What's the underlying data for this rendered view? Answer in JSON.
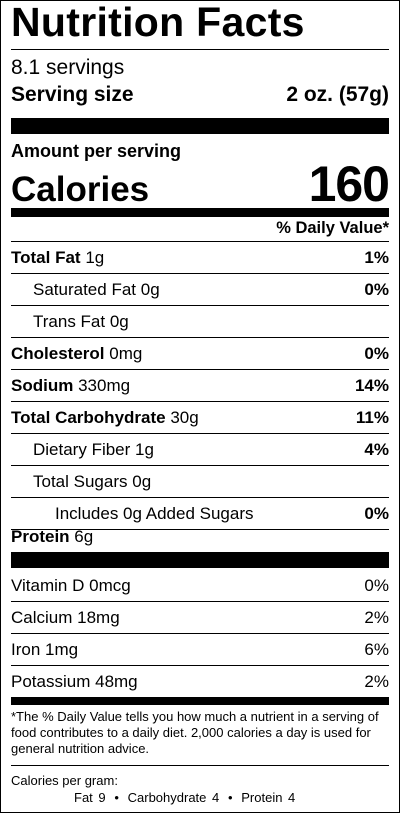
{
  "title": "Nutrition Facts",
  "servings": "8.1 servings",
  "serving_size": {
    "label": "Serving size",
    "value": "2 oz. (57g)"
  },
  "amount_per_serving": "Amount per serving",
  "calories": {
    "label": "Calories",
    "value": "160"
  },
  "daily_value_header": "% Daily Value*",
  "nutrients": [
    {
      "name": "Total Fat",
      "amount": "1g",
      "dv": "1%"
    },
    {
      "name": "Saturated Fat",
      "amount": "0g",
      "dv": "0%"
    },
    {
      "name": "Trans Fat",
      "amount": "0g",
      "dv": ""
    },
    {
      "name": "Cholesterol",
      "amount": "0mg",
      "dv": "0%"
    },
    {
      "name": "Sodium",
      "amount": "330mg",
      "dv": "14%"
    },
    {
      "name": "Total Carbohydrate",
      "amount": "30g",
      "dv": "11%"
    },
    {
      "name": "Dietary Fiber",
      "amount": "1g",
      "dv": "4%"
    },
    {
      "name": "Total Sugars",
      "amount": "0g",
      "dv": ""
    },
    {
      "name": "Includes 0g Added Sugars",
      "amount": "",
      "dv": "0%"
    },
    {
      "name": "Protein",
      "amount": "6g",
      "dv": ""
    }
  ],
  "vitamins": [
    {
      "name": "Vitamin D",
      "amount": "0mcg",
      "dv": "0%"
    },
    {
      "name": "Calcium",
      "amount": "18mg",
      "dv": "2%"
    },
    {
      "name": "Iron",
      "amount": "1mg",
      "dv": "6%"
    },
    {
      "name": "Potassium",
      "amount": "48mg",
      "dv": "2%"
    }
  ],
  "footnote": "*The % Daily Value tells you how much a nutrient in a serving of food contributes to a daily diet. 2,000 calories a day is used for general nutrition advice.",
  "calories_per_gram": {
    "heading": "Calories per gram:",
    "fat": "Fat 9",
    "carbohydrate": "Carbohydrate 4",
    "protein": "Protein 4",
    "separator": "•"
  }
}
